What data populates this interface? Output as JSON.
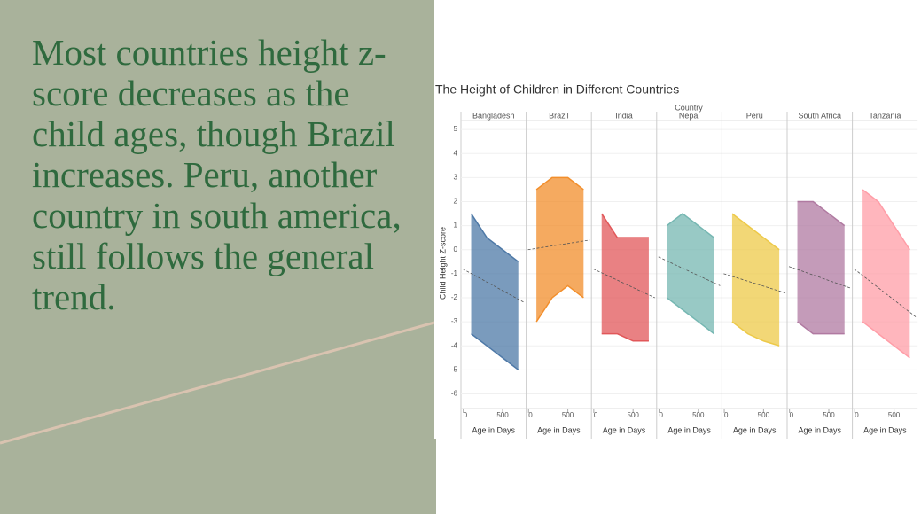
{
  "slide": {
    "text": "Most countries height z-score decreases as the child ages, though Brazil increases. Peru, another country in south america, still follows the general trend."
  },
  "chart_data": {
    "type": "line",
    "title": "The Height of Children in Different Countries",
    "facet_label": "Country",
    "y_label": "Child Height Z-score",
    "x_label": "Age in Days",
    "ylim": [
      -6.5,
      5.3
    ],
    "yticks": [
      5,
      4,
      3,
      2,
      1,
      0,
      -1,
      -2,
      -3,
      -4,
      -5,
      -6
    ],
    "xlim": [
      -30,
      800
    ],
    "xticks": [
      0,
      500
    ],
    "x": [
      100,
      300,
      500,
      700
    ],
    "grid": true,
    "series": [
      {
        "name": "Bangladesh",
        "color": "#4e79a7",
        "upper": [
          1.5,
          0.5,
          0,
          -0.5
        ],
        "lower": [
          -3.5,
          -4,
          -4.5,
          -5
        ],
        "trend": [
          -0.8,
          -2.2
        ]
      },
      {
        "name": "Brazil",
        "color": "#f28e2b",
        "upper": [
          2.5,
          3,
          3,
          2.5
        ],
        "lower": [
          -3,
          -2,
          -1.5,
          -2
        ],
        "trend": [
          0,
          0.4
        ]
      },
      {
        "name": "India",
        "color": "#e15759",
        "upper": [
          1.5,
          0.5,
          0.5,
          0.5
        ],
        "lower": [
          -3.5,
          -3.5,
          -3.8,
          -3.8
        ],
        "trend": [
          -0.8,
          -2
        ]
      },
      {
        "name": "Nepal",
        "color": "#76b7b2",
        "upper": [
          1,
          1.5,
          1,
          0.5
        ],
        "lower": [
          -2,
          -2.5,
          -3,
          -3.5
        ],
        "trend": [
          -0.3,
          -1.5
        ]
      },
      {
        "name": "Peru",
        "color": "#edc948",
        "upper": [
          1.5,
          1,
          0.5,
          0
        ],
        "lower": [
          -3,
          -3.5,
          -3.8,
          -4
        ],
        "trend": [
          -1,
          -1.8
        ]
      },
      {
        "name": "South Africa",
        "color": "#b07aa1",
        "upper": [
          2,
          2,
          1.5,
          1
        ],
        "lower": [
          -3,
          -3.5,
          -3.5,
          -3.5
        ],
        "trend": [
          -0.7,
          -1.6
        ]
      },
      {
        "name": "Tanzania",
        "color": "#ff9da7",
        "upper": [
          2.5,
          2,
          1,
          0
        ],
        "lower": [
          -3,
          -3.5,
          -4,
          -4.5
        ],
        "trend": [
          -0.8,
          -2.8
        ]
      }
    ]
  }
}
